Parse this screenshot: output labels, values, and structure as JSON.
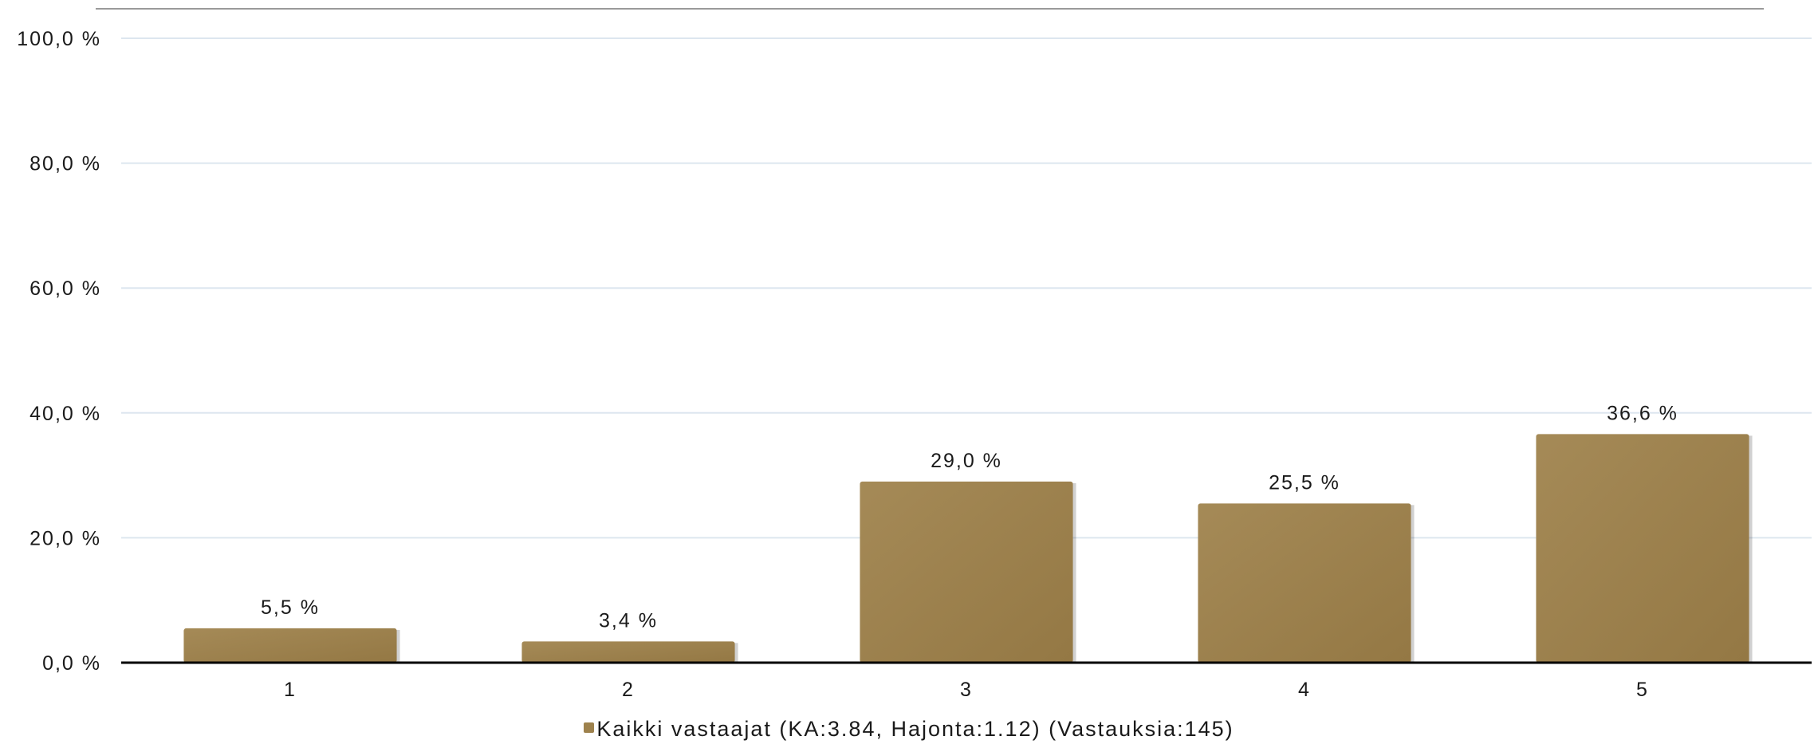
{
  "chart_data": {
    "type": "bar",
    "categories": [
      "1",
      "2",
      "3",
      "4",
      "5"
    ],
    "series": [
      {
        "name": "Kaikki vastaajat (KA:3.84, Hajonta:1.12) (Vastauksia:145)",
        "values": [
          5.5,
          3.4,
          29.0,
          25.5,
          36.6
        ],
        "labels": [
          "5,5 %",
          "3,4 %",
          "29,0 %",
          "25,5 %",
          "36,6 %"
        ],
        "color": "#9e824d"
      }
    ],
    "ylim": [
      0,
      100
    ],
    "yticks": [
      0,
      20,
      40,
      60,
      80,
      100
    ],
    "ytick_labels": [
      "0,0 %",
      "20,0 %",
      "40,0 %",
      "60,0 %",
      "80,0 %",
      "100,0 %"
    ],
    "grid": true,
    "legend_position": "bottom",
    "colors": {
      "grid": "#dde6ef",
      "axis": "#000000",
      "top_rule": "#9a9a9a"
    }
  }
}
